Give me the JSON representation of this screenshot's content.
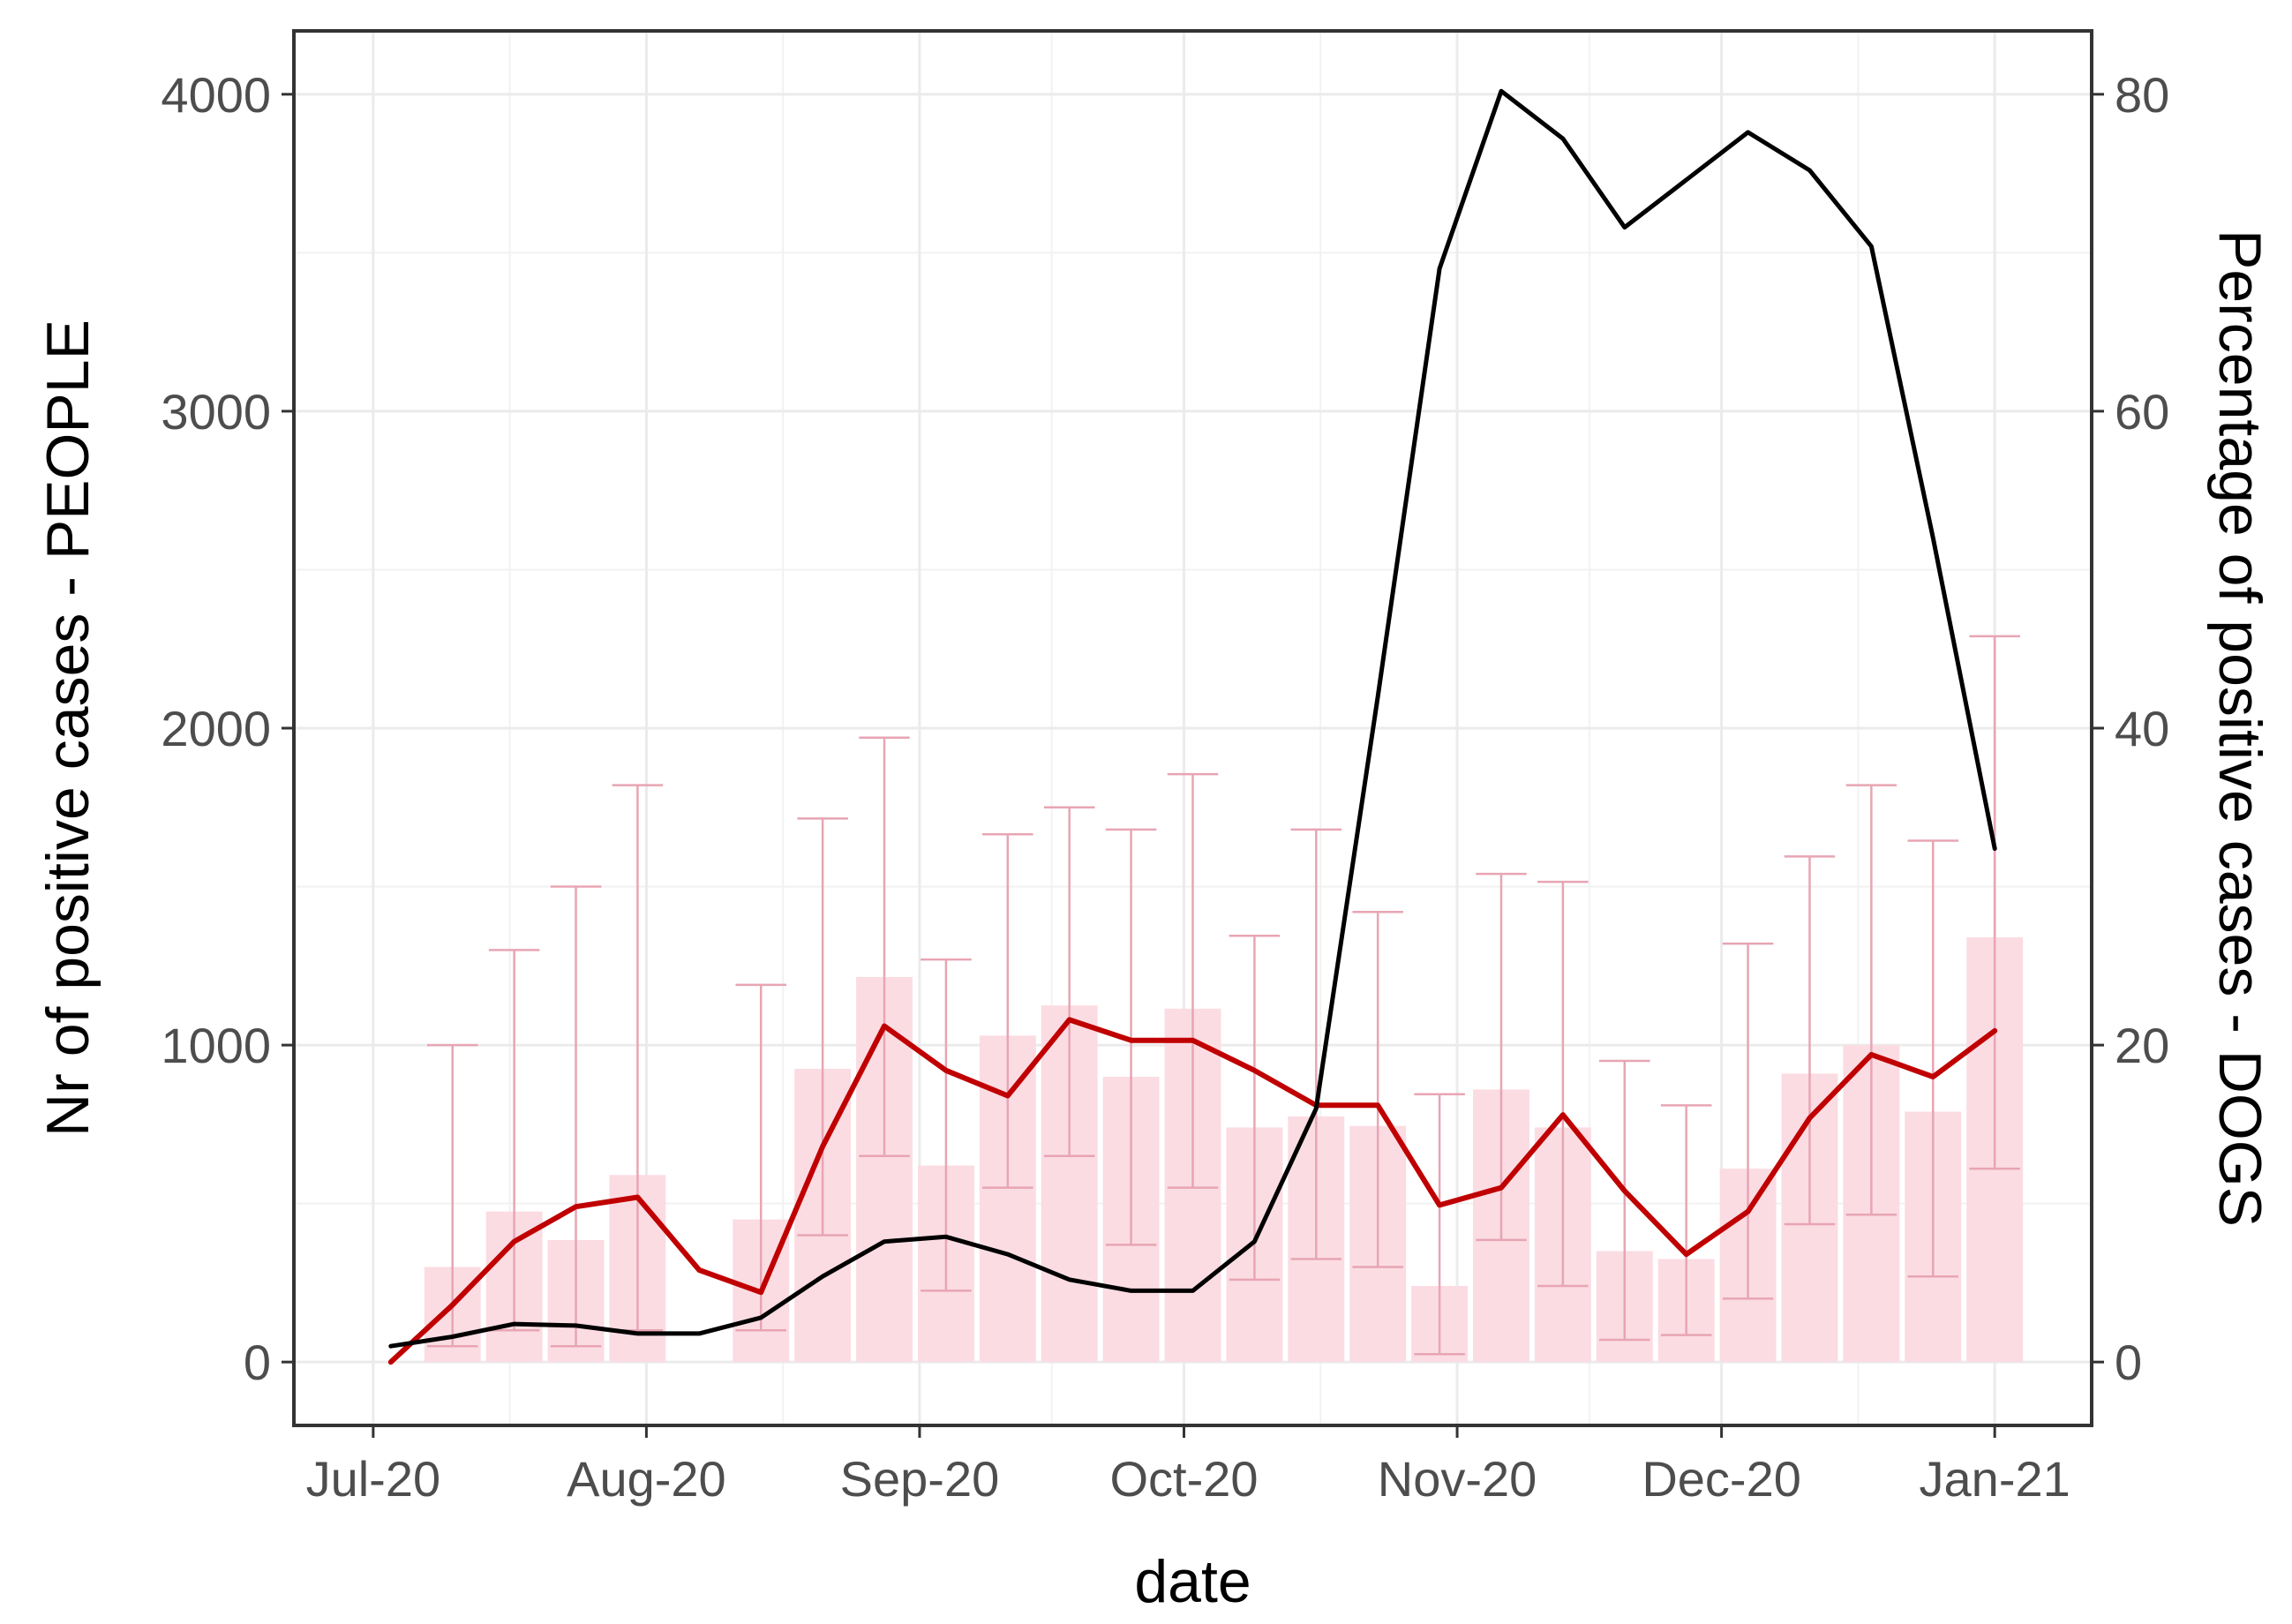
{
  "chart_data": {
    "type": "bar",
    "title": "",
    "xlabel": "date",
    "ylabel_left": "Nr of positive cases - PEOPLE",
    "ylabel_right": "Percentage of positive cases - DOGS",
    "x_ticks": [
      {
        "date": "2020-07-01",
        "label": "Jul-20"
      },
      {
        "date": "2020-08-01",
        "label": "Aug-20"
      },
      {
        "date": "2020-09-01",
        "label": "Sep-20"
      },
      {
        "date": "2020-10-01",
        "label": "Oct-20"
      },
      {
        "date": "2020-11-01",
        "label": "Nov-20"
      },
      {
        "date": "2020-12-01",
        "label": "Dec-20"
      },
      {
        "date": "2021-01-01",
        "label": "Jan-21"
      }
    ],
    "xlim": [
      "2020-06-22",
      "2021-01-12"
    ],
    "y_left": {
      "ticks": [
        0,
        1000,
        2000,
        3000,
        4000
      ],
      "labels": [
        "0",
        "1000",
        "2000",
        "3000",
        "4000"
      ],
      "range": [
        -200,
        4200
      ]
    },
    "y_right": {
      "ticks": [
        0,
        20,
        40,
        60,
        80
      ],
      "labels": [
        "0",
        "20",
        "40",
        "60",
        "80"
      ],
      "range": [
        -4,
        84
      ]
    },
    "grid": true,
    "legend": "none",
    "colors": {
      "bar_fill": "#fbdce3",
      "errorbar": "#e8a5b3",
      "dogs_line": "#c00000",
      "people_line": "#000000",
      "panel_border": "#333333"
    },
    "dogs_percentage": [
      {
        "date": "2020-07-03",
        "value": 0,
        "low": 0,
        "high": 0
      },
      {
        "date": "2020-07-10",
        "value": 6,
        "low": 1,
        "high": 20
      },
      {
        "date": "2020-07-17",
        "value": 9.5,
        "low": 2,
        "high": 26
      },
      {
        "date": "2020-07-24",
        "value": 7.7,
        "low": 1,
        "high": 30
      },
      {
        "date": "2020-07-31",
        "value": 11.8,
        "low": 2,
        "high": 36.4
      },
      {
        "date": "2020-08-07",
        "value": 0,
        "low": 0,
        "high": 0
      },
      {
        "date": "2020-08-14",
        "value": 9,
        "low": 2,
        "high": 23.8
      },
      {
        "date": "2020-08-21",
        "value": 18.5,
        "low": 8,
        "high": 34.3
      },
      {
        "date": "2020-08-28",
        "value": 24.3,
        "low": 13,
        "high": 39.4
      },
      {
        "date": "2020-09-04",
        "value": 12.4,
        "low": 4.5,
        "high": 25.4
      },
      {
        "date": "2020-09-11",
        "value": 20.6,
        "low": 11,
        "high": 33.3
      },
      {
        "date": "2020-09-18",
        "value": 22.5,
        "low": 13,
        "high": 35
      },
      {
        "date": "2020-09-25",
        "value": 18,
        "low": 7.4,
        "high": 33.6
      },
      {
        "date": "2020-10-02",
        "value": 22.3,
        "low": 11,
        "high": 37.1
      },
      {
        "date": "2020-10-09",
        "value": 14.8,
        "low": 5.2,
        "high": 26.9
      },
      {
        "date": "2020-10-16",
        "value": 15.5,
        "low": 6.5,
        "high": 33.6
      },
      {
        "date": "2020-10-23",
        "value": 14.9,
        "low": 6,
        "high": 28.4
      },
      {
        "date": "2020-10-30",
        "value": 4.8,
        "low": 0.5,
        "high": 16.9
      },
      {
        "date": "2020-11-06",
        "value": 17.2,
        "low": 7.7,
        "high": 30.8
      },
      {
        "date": "2020-11-13",
        "value": 14.8,
        "low": 4.8,
        "high": 30.3
      },
      {
        "date": "2020-11-20",
        "value": 7,
        "low": 1.4,
        "high": 19
      },
      {
        "date": "2020-11-27",
        "value": 6.5,
        "low": 1.7,
        "high": 16.2
      },
      {
        "date": "2020-12-04",
        "value": 12.2,
        "low": 4,
        "high": 26.4
      },
      {
        "date": "2020-12-11",
        "value": 18.2,
        "low": 8.7,
        "high": 31.9
      },
      {
        "date": "2020-12-18",
        "value": 20,
        "low": 9.3,
        "high": 36.4
      },
      {
        "date": "2020-12-25",
        "value": 15.8,
        "low": 5.4,
        "high": 32.9
      },
      {
        "date": "2021-01-01",
        "value": 26.8,
        "low": 12.2,
        "high": 45.8
      }
    ],
    "series": [
      {
        "axis": "right",
        "points": [
          {
            "date": "2020-07-03",
            "value": 0
          },
          {
            "date": "2020-07-10",
            "value": 3.6
          },
          {
            "date": "2020-07-17",
            "value": 7.6
          },
          {
            "date": "2020-07-24",
            "value": 9.8
          },
          {
            "date": "2020-07-31",
            "value": 10.4
          },
          {
            "date": "2020-08-07",
            "value": 5.8
          },
          {
            "date": "2020-08-14",
            "value": 4.4
          },
          {
            "date": "2020-08-21",
            "value": 13.6
          },
          {
            "date": "2020-08-28",
            "value": 21.2
          },
          {
            "date": "2020-09-04",
            "value": 18.4
          },
          {
            "date": "2020-09-11",
            "value": 16.8
          },
          {
            "date": "2020-09-18",
            "value": 21.6
          },
          {
            "date": "2020-09-25",
            "value": 20.3
          },
          {
            "date": "2020-10-02",
            "value": 20.3
          },
          {
            "date": "2020-10-09",
            "value": 18.4
          },
          {
            "date": "2020-10-16",
            "value": 16.2
          },
          {
            "date": "2020-10-23",
            "value": 16.2
          },
          {
            "date": "2020-10-30",
            "value": 9.9
          },
          {
            "date": "2020-11-06",
            "value": 11
          },
          {
            "date": "2020-11-13",
            "value": 15.6
          },
          {
            "date": "2020-11-20",
            "value": 10.8
          },
          {
            "date": "2020-11-27",
            "value": 6.8
          },
          {
            "date": "2020-12-04",
            "value": 9.5
          },
          {
            "date": "2020-12-11",
            "value": 15.4
          },
          {
            "date": "2020-12-18",
            "value": 19.4
          },
          {
            "date": "2020-12-25",
            "value": 18
          },
          {
            "date": "2021-01-01",
            "value": 20.9
          }
        ]
      },
      {
        "axis": "left",
        "points": [
          {
            "date": "2020-07-03",
            "value": 50
          },
          {
            "date": "2020-07-10",
            "value": 80
          },
          {
            "date": "2020-07-17",
            "value": 120
          },
          {
            "date": "2020-07-24",
            "value": 115
          },
          {
            "date": "2020-07-31",
            "value": 90
          },
          {
            "date": "2020-08-07",
            "value": 90
          },
          {
            "date": "2020-08-14",
            "value": 140
          },
          {
            "date": "2020-08-21",
            "value": 270
          },
          {
            "date": "2020-08-28",
            "value": 380
          },
          {
            "date": "2020-09-04",
            "value": 395
          },
          {
            "date": "2020-09-11",
            "value": 340
          },
          {
            "date": "2020-09-18",
            "value": 260
          },
          {
            "date": "2020-09-25",
            "value": 225
          },
          {
            "date": "2020-10-02",
            "value": 225
          },
          {
            "date": "2020-10-09",
            "value": 380
          },
          {
            "date": "2020-10-16",
            "value": 800
          },
          {
            "date": "2020-10-23",
            "value": 2100
          },
          {
            "date": "2020-10-30",
            "value": 3450
          },
          {
            "date": "2020-11-06",
            "value": 4010
          },
          {
            "date": "2020-11-13",
            "value": 3860
          },
          {
            "date": "2020-11-20",
            "value": 3580
          },
          {
            "date": "2020-11-27",
            "value": 3730
          },
          {
            "date": "2020-12-04",
            "value": 3880
          },
          {
            "date": "2020-12-11",
            "value": 3760
          },
          {
            "date": "2020-12-18",
            "value": 3520
          },
          {
            "date": "2020-12-25",
            "value": 2600
          },
          {
            "date": "2021-01-01",
            "value": 1620
          }
        ]
      }
    ]
  }
}
